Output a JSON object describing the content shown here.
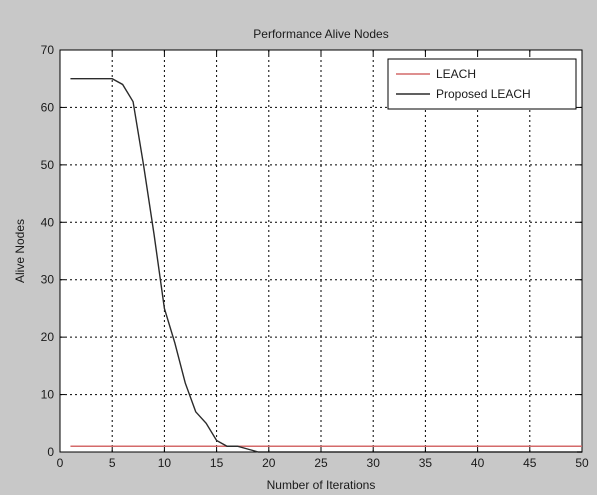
{
  "chart_data": {
    "type": "line",
    "title": "Performance Alive Nodes",
    "xlabel": "Number of Iterations",
    "ylabel": "Alive Nodes",
    "xlim": [
      0,
      50
    ],
    "ylim": [
      0,
      70
    ],
    "xticks": [
      0,
      5,
      10,
      15,
      20,
      25,
      30,
      35,
      40,
      45,
      50
    ],
    "yticks": [
      0,
      10,
      20,
      30,
      40,
      50,
      60,
      70
    ],
    "grid": true,
    "legend_position": "top-right",
    "series": [
      {
        "name": "LEACH",
        "color": "#d46a6a",
        "x": [
          1,
          50
        ],
        "y": [
          1,
          1
        ]
      },
      {
        "name": "Proposed LEACH",
        "color": "#2b2b2b",
        "x": [
          1,
          5,
          6,
          7,
          8,
          9,
          10,
          11,
          12,
          13,
          14,
          15,
          16,
          17,
          18,
          19,
          50
        ],
        "y": [
          65,
          65,
          64,
          61,
          50,
          38,
          25,
          19,
          12,
          7,
          5,
          2,
          1,
          1,
          0.5,
          0,
          0
        ]
      }
    ]
  }
}
